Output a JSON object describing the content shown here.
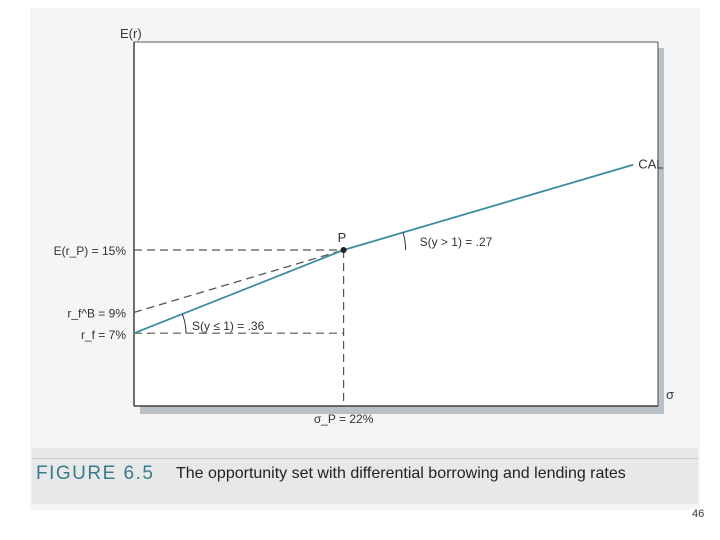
{
  "figure": {
    "number": "FIGURE 6.5",
    "caption": "The opportunity set with differential borrowing and lending rates",
    "page_number": "46"
  },
  "chart_data": {
    "type": "line",
    "title": "",
    "xlabel": "σ",
    "ylabel": "E(r)",
    "xlim": [
      0,
      55
    ],
    "ylim": [
      0,
      35
    ],
    "grid": false,
    "series": [
      {
        "name": "CAL",
        "x": [
          0,
          22
        ],
        "y": [
          7,
          15
        ]
      },
      {
        "name": "",
        "x": [
          22,
          52.4
        ],
        "y": [
          15,
          23.2
        ]
      }
    ],
    "dashed_line": {
      "x": [
        0,
        22
      ],
      "y": [
        9,
        15
      ]
    },
    "point": {
      "label": "P",
      "x": 22,
      "y": 15
    },
    "axis_labels": {
      "y_EP": "E(r_P) = 15%",
      "y_rfB": "r_f^B = 9%",
      "y_rf": "r_f = 7%",
      "x_sigmaP": "σ_P = 22%"
    },
    "annotations": {
      "cal_label": "CAL",
      "slope_low": "S(y ≤ 1) = .36",
      "slope_high": "S(y > 1) = .27"
    },
    "colors": {
      "line": "#3d8ba0",
      "dashed": "#555555",
      "point": "#222222",
      "axes": "#222222",
      "shadow": "#b9c1c7",
      "figure_number": "#3a7a8c"
    }
  }
}
